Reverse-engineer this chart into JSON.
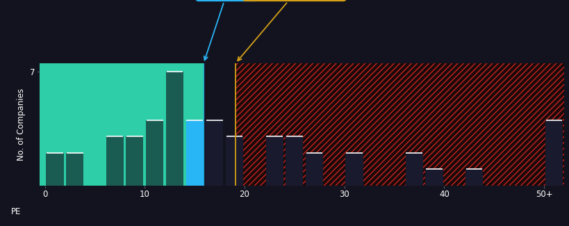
{
  "bg_color": "#13131f",
  "green_region_color": "#2dcea8",
  "green_region_alpha": 1.0,
  "red_region_bg": "#1a0a0a",
  "red_hatch_color": "#cc2222",
  "bar_left_color": "#1a5c52",
  "bar_hum_color": "#29b6f6",
  "bar_right_color": "#1a1a2e",
  "hum_line_color": "#29b6f6",
  "industry_line_color": "#d4a017",
  "hum_value": 15.9,
  "industry_value": 19.1,
  "hum_box_color": "#29b6f6",
  "industry_box_color": "#d4a017",
  "xlabel": "PE",
  "ylabel": "No. of Companies",
  "ytick_val": 7,
  "xtick_labels": [
    "0",
    "10",
    "20",
    "30",
    "40",
    "50+"
  ],
  "xtick_positions": [
    0,
    10,
    20,
    30,
    40,
    50
  ],
  "ylim": [
    0,
    7.5
  ],
  "xlim": [
    -0.5,
    52
  ],
  "bins": [
    0,
    2,
    4,
    6,
    8,
    10,
    12,
    14,
    16,
    18,
    20,
    22,
    24,
    26,
    28,
    30,
    32,
    34,
    36,
    38,
    40,
    42,
    44,
    46,
    48,
    50
  ],
  "heights": [
    2,
    2,
    0,
    3,
    3,
    4,
    7,
    4,
    4,
    3,
    0,
    3,
    3,
    2,
    0,
    2,
    0,
    0,
    2,
    1,
    0,
    1,
    0,
    0,
    0,
    4
  ],
  "bar_width": 1.75,
  "text_color": "#ffffff",
  "tick_fontsize": 8.5,
  "label_fontsize": 8.5,
  "annotation_fontsize": 9.5
}
